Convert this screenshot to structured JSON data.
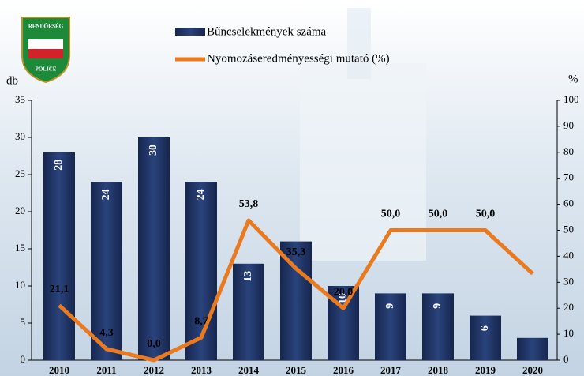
{
  "chart_data": {
    "type": "bar-line",
    "categories": [
      "2010",
      "2011",
      "2012",
      "2013",
      "2014",
      "2015",
      "2016",
      "2017",
      "2018",
      "2019",
      "2020"
    ],
    "series": [
      {
        "name": "Bűncselekmények száma",
        "type": "bar",
        "color": "#1f3263",
        "values": [
          28,
          24,
          30,
          24,
          13,
          16,
          10,
          9,
          9,
          6,
          3
        ],
        "value_labels": [
          "28",
          "24",
          "30",
          "24",
          "13",
          null,
          "10",
          "9",
          "9",
          "6",
          null
        ]
      },
      {
        "name": "Nyomozáseredményességi mutató (%)",
        "type": "line",
        "axis": "y2",
        "color": "#ea7a1f",
        "values": [
          21.1,
          4.3,
          0.0,
          8.7,
          53.8,
          35.3,
          20.0,
          50.0,
          50.0,
          50.0,
          33.3
        ],
        "value_labels": [
          "21,1",
          "4,3",
          "0,0",
          "8,7",
          "53,8",
          "35,3",
          "20,0",
          "50,0",
          "50,0",
          "50,0",
          null
        ]
      }
    ],
    "ylabel": "db",
    "y2label": "%",
    "ylim": [
      0,
      35
    ],
    "yticks": [
      0,
      5,
      10,
      15,
      20,
      25,
      30,
      35
    ],
    "y2lim": [
      0,
      100
    ],
    "y2ticks": [
      0,
      10,
      20,
      30,
      40,
      50,
      60,
      70,
      80,
      90,
      100
    ],
    "annotations": [
      "RENDŐRSÉG",
      "POLICE"
    ]
  }
}
